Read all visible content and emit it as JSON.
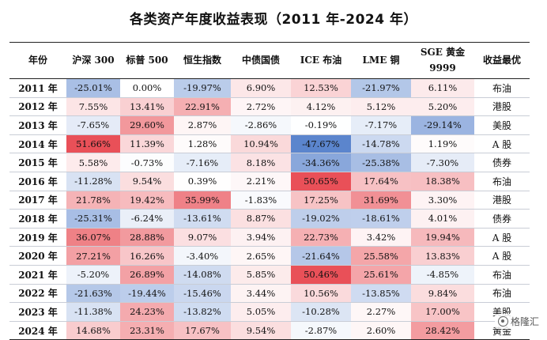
{
  "title": "各类资产年度收益表现（2011 年-2024 年）",
  "headers": [
    "年份",
    "沪深 300",
    "标普 500",
    "恒生指数",
    "中债国债",
    "ICE 布油",
    "LME 铜",
    "SGE 黄金\n9999",
    "收益最优"
  ],
  "rows": [
    {
      "year": "2011 年",
      "cells": [
        "-25.01%",
        "0.00%",
        "-19.97%",
        "6.90%",
        "12.53%",
        "-21.97%",
        "6.11%"
      ],
      "best": "布油"
    },
    {
      "year": "2012 年",
      "cells": [
        "7.55%",
        "13.41%",
        "22.91%",
        "2.72%",
        "4.12%",
        "5.12%",
        "5.20%"
      ],
      "best": "港股"
    },
    {
      "year": "2013 年",
      "cells": [
        "-7.65%",
        "29.60%",
        "2.87%",
        "-2.86%",
        "-0.19%",
        "-7.17%",
        "-29.14%"
      ],
      "best": "美股"
    },
    {
      "year": "2014 年",
      "cells": [
        "51.66%",
        "11.39%",
        "1.28%",
        "10.94%",
        "-47.67%",
        "-14.78%",
        "1.19%"
      ],
      "best": "A 股"
    },
    {
      "year": "2015 年",
      "cells": [
        "5.58%",
        "-0.73%",
        "-7.16%",
        "8.18%",
        "-34.36%",
        "-25.38%",
        "-7.30%"
      ],
      "best": "债券"
    },
    {
      "year": "2016 年",
      "cells": [
        "-11.28%",
        "9.54%",
        "0.39%",
        "2.21%",
        "50.65%",
        "17.64%",
        "18.38%"
      ],
      "best": "布油"
    },
    {
      "year": "2017 年",
      "cells": [
        "21.78%",
        "19.42%",
        "35.99%",
        "-1.83%",
        "17.25%",
        "31.69%",
        "3.30%"
      ],
      "best": "港股"
    },
    {
      "year": "2018 年",
      "cells": [
        "-25.31%",
        "-6.24%",
        "-13.61%",
        "8.87%",
        "-19.02%",
        "-18.61%",
        "4.01%"
      ],
      "best": "债券"
    },
    {
      "year": "2019 年",
      "cells": [
        "36.07%",
        "28.88%",
        "9.07%",
        "3.94%",
        "22.73%",
        "3.42%",
        "19.94%"
      ],
      "best": "A 股"
    },
    {
      "year": "2020 年",
      "cells": [
        "27.21%",
        "16.26%",
        "-3.40%",
        "2.65%",
        "-21.64%",
        "25.58%",
        "13.83%"
      ],
      "best": "A 股"
    },
    {
      "year": "2021 年",
      "cells": [
        "-5.20%",
        "26.89%",
        "-14.08%",
        "5.85%",
        "50.46%",
        "25.61%",
        "-4.85%"
      ],
      "best": "布油"
    },
    {
      "year": "2022 年",
      "cells": [
        "-21.63%",
        "-19.44%",
        "-15.46%",
        "3.44%",
        "10.56%",
        "-13.85%",
        "9.84%"
      ],
      "best": "布油"
    },
    {
      "year": "2023 年",
      "cells": [
        "-11.38%",
        "24.23%",
        "-13.82%",
        "5.05%",
        "-10.28%",
        "2.27%",
        "17.00%"
      ],
      "best": "美股"
    },
    {
      "year": "2024 年",
      "cells": [
        "14.68%",
        "23.31%",
        "17.67%",
        "9.54%",
        "-2.87%",
        "2.60%",
        "28.42%"
      ],
      "best": "黄金"
    }
  ],
  "colors": {
    "positive": "#e8474f",
    "negative": "#4a78c8",
    "neutral": "#ffffff"
  },
  "watermark": "格隆汇"
}
